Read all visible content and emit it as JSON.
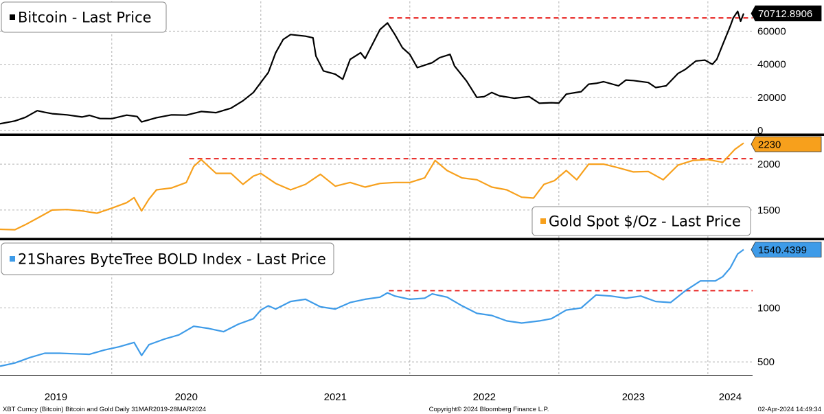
{
  "colors": {
    "bitcoin": "#000000",
    "gold": "#f7a01c",
    "bold": "#3e9be8",
    "resistance": "#e8201e",
    "grid": "#b4b4b4",
    "divider": "#000000"
  },
  "footer": {
    "left": "XBT Curncy (Bitcoin) Bitcoin and Gold  Daily 31MAR2019-28MAR2024",
    "center": "Copyright© 2024 Bloomberg Finance L.P.",
    "right": "02-Apr-2024 14:49:34"
  },
  "chart_data": [
    {
      "type": "line",
      "name": "bitcoin",
      "legend": "Bitcoin - Last Price",
      "legend_placement": "top-left",
      "last_value_label": "70712.8906",
      "last_value": 70712.89,
      "ylim": [
        -2000,
        78000
      ],
      "yticks": [
        0,
        20000,
        40000,
        60000
      ],
      "ytick_labels": [
        "0",
        "20000",
        "40000",
        "60000"
      ],
      "resistance": {
        "y": 68000,
        "x_start": 2021.86,
        "x_end": 2024.3
      },
      "points": [
        [
          2019.25,
          4100
        ],
        [
          2019.35,
          5800
        ],
        [
          2019.42,
          8000
        ],
        [
          2019.5,
          12000
        ],
        [
          2019.55,
          11000
        ],
        [
          2019.6,
          10200
        ],
        [
          2019.7,
          9500
        ],
        [
          2019.8,
          8200
        ],
        [
          2019.85,
          9200
        ],
        [
          2019.92,
          7300
        ],
        [
          2020.0,
          7200
        ],
        [
          2020.1,
          9300
        ],
        [
          2020.17,
          8500
        ],
        [
          2020.2,
          5200
        ],
        [
          2020.3,
          7800
        ],
        [
          2020.4,
          9500
        ],
        [
          2020.5,
          9300
        ],
        [
          2020.6,
          11500
        ],
        [
          2020.7,
          10800
        ],
        [
          2020.8,
          13500
        ],
        [
          2020.88,
          18000
        ],
        [
          2020.95,
          23000
        ],
        [
          2021.0,
          29000
        ],
        [
          2021.05,
          35000
        ],
        [
          2021.1,
          47000
        ],
        [
          2021.15,
          55000
        ],
        [
          2021.2,
          58000
        ],
        [
          2021.3,
          57000
        ],
        [
          2021.35,
          56000
        ],
        [
          2021.37,
          45000
        ],
        [
          2021.42,
          36000
        ],
        [
          2021.5,
          34000
        ],
        [
          2021.55,
          31000
        ],
        [
          2021.6,
          43000
        ],
        [
          2021.67,
          47000
        ],
        [
          2021.7,
          43500
        ],
        [
          2021.8,
          61000
        ],
        [
          2021.85,
          65000
        ],
        [
          2021.9,
          58000
        ],
        [
          2021.95,
          50000
        ],
        [
          2022.0,
          46000
        ],
        [
          2022.05,
          38000
        ],
        [
          2022.15,
          41000
        ],
        [
          2022.2,
          44000
        ],
        [
          2022.27,
          46000
        ],
        [
          2022.3,
          39000
        ],
        [
          2022.38,
          30000
        ],
        [
          2022.45,
          20000
        ],
        [
          2022.5,
          20500
        ],
        [
          2022.55,
          23000
        ],
        [
          2022.6,
          21000
        ],
        [
          2022.7,
          19500
        ],
        [
          2022.8,
          20500
        ],
        [
          2022.87,
          16500
        ],
        [
          2022.95,
          16800
        ],
        [
          2023.0,
          16600
        ],
        [
          2023.05,
          22000
        ],
        [
          2023.15,
          23500
        ],
        [
          2023.2,
          28000
        ],
        [
          2023.25,
          28500
        ],
        [
          2023.3,
          29500
        ],
        [
          2023.4,
          27000
        ],
        [
          2023.45,
          30500
        ],
        [
          2023.5,
          30200
        ],
        [
          2023.6,
          29000
        ],
        [
          2023.65,
          26000
        ],
        [
          2023.72,
          27000
        ],
        [
          2023.8,
          34500
        ],
        [
          2023.85,
          37000
        ],
        [
          2023.92,
          42000
        ],
        [
          2023.98,
          42500
        ],
        [
          2024.03,
          40000
        ],
        [
          2024.06,
          43000
        ],
        [
          2024.1,
          52000
        ],
        [
          2024.15,
          63000
        ],
        [
          2024.17,
          68000
        ],
        [
          2024.2,
          72000
        ],
        [
          2024.22,
          66000
        ],
        [
          2024.24,
          70712.89
        ]
      ]
    },
    {
      "type": "line",
      "name": "gold",
      "legend": "Gold Spot $/Oz - Last Price",
      "legend_placement": "bottom-right",
      "last_value_label": "2230",
      "last_value": 2230,
      "ylim": [
        1200,
        2300
      ],
      "yticks": [
        1500,
        2000
      ],
      "ytick_labels": [
        "1500",
        "2000"
      ],
      "resistance": {
        "y": 2060,
        "x_start": 2020.52,
        "x_end": 2024.3
      },
      "points": [
        [
          2019.25,
          1290
        ],
        [
          2019.35,
          1285
        ],
        [
          2019.42,
          1340
        ],
        [
          2019.5,
          1410
        ],
        [
          2019.6,
          1500
        ],
        [
          2019.7,
          1505
        ],
        [
          2019.8,
          1490
        ],
        [
          2019.9,
          1465
        ],
        [
          2020.0,
          1520
        ],
        [
          2020.1,
          1580
        ],
        [
          2020.15,
          1635
        ],
        [
          2020.2,
          1490
        ],
        [
          2020.25,
          1620
        ],
        [
          2020.3,
          1720
        ],
        [
          2020.4,
          1740
        ],
        [
          2020.5,
          1800
        ],
        [
          2020.55,
          1975
        ],
        [
          2020.6,
          2050
        ],
        [
          2020.7,
          1900
        ],
        [
          2020.8,
          1900
        ],
        [
          2020.88,
          1780
        ],
        [
          2020.95,
          1870
        ],
        [
          2021.0,
          1900
        ],
        [
          2021.1,
          1790
        ],
        [
          2021.2,
          1720
        ],
        [
          2021.3,
          1780
        ],
        [
          2021.4,
          1890
        ],
        [
          2021.5,
          1760
        ],
        [
          2021.6,
          1800
        ],
        [
          2021.7,
          1750
        ],
        [
          2021.8,
          1790
        ],
        [
          2021.9,
          1800
        ],
        [
          2022.0,
          1800
        ],
        [
          2022.1,
          1850
        ],
        [
          2022.17,
          2040
        ],
        [
          2022.25,
          1930
        ],
        [
          2022.35,
          1850
        ],
        [
          2022.45,
          1830
        ],
        [
          2022.55,
          1750
        ],
        [
          2022.65,
          1720
        ],
        [
          2022.75,
          1640
        ],
        [
          2022.83,
          1630
        ],
        [
          2022.9,
          1780
        ],
        [
          2022.97,
          1820
        ],
        [
          2023.05,
          1930
        ],
        [
          2023.12,
          1830
        ],
        [
          2023.2,
          2000
        ],
        [
          2023.3,
          2000
        ],
        [
          2023.4,
          1960
        ],
        [
          2023.5,
          1915
        ],
        [
          2023.6,
          1920
        ],
        [
          2023.7,
          1830
        ],
        [
          2023.8,
          1990
        ],
        [
          2023.9,
          2040
        ],
        [
          2024.0,
          2050
        ],
        [
          2024.1,
          2020
        ],
        [
          2024.18,
          2160
        ],
        [
          2024.24,
          2230
        ]
      ]
    },
    {
      "type": "line",
      "name": "bold",
      "legend": "21Shares ByteTree BOLD Index - Last Price",
      "legend_placement": "top-left",
      "last_value_label": "1540.4399",
      "last_value": 1540.44,
      "ylim": [
        380,
        1620
      ],
      "yticks": [
        500,
        1000
      ],
      "ytick_labels": [
        "500",
        "1000"
      ],
      "resistance": {
        "y": 1160,
        "x_start": 2021.86,
        "x_end": 2024.3
      },
      "points": [
        [
          2019.25,
          460
        ],
        [
          2019.35,
          490
        ],
        [
          2019.45,
          540
        ],
        [
          2019.55,
          580
        ],
        [
          2019.65,
          580
        ],
        [
          2019.75,
          575
        ],
        [
          2019.85,
          570
        ],
        [
          2019.95,
          610
        ],
        [
          2020.05,
          640
        ],
        [
          2020.15,
          680
        ],
        [
          2020.2,
          560
        ],
        [
          2020.25,
          660
        ],
        [
          2020.35,
          710
        ],
        [
          2020.45,
          750
        ],
        [
          2020.55,
          830
        ],
        [
          2020.65,
          810
        ],
        [
          2020.75,
          780
        ],
        [
          2020.85,
          850
        ],
        [
          2020.95,
          900
        ],
        [
          2021.0,
          980
        ],
        [
          2021.05,
          1020
        ],
        [
          2021.1,
          990
        ],
        [
          2021.2,
          1060
        ],
        [
          2021.3,
          1080
        ],
        [
          2021.4,
          1010
        ],
        [
          2021.5,
          990
        ],
        [
          2021.6,
          1050
        ],
        [
          2021.7,
          1080
        ],
        [
          2021.8,
          1100
        ],
        [
          2021.85,
          1140
        ],
        [
          2021.9,
          1110
        ],
        [
          2022.0,
          1080
        ],
        [
          2022.1,
          1090
        ],
        [
          2022.15,
          1130
        ],
        [
          2022.25,
          1100
        ],
        [
          2022.35,
          1020
        ],
        [
          2022.45,
          950
        ],
        [
          2022.55,
          930
        ],
        [
          2022.65,
          880
        ],
        [
          2022.75,
          860
        ],
        [
          2022.87,
          880
        ],
        [
          2022.95,
          900
        ],
        [
          2023.05,
          980
        ],
        [
          2023.15,
          1000
        ],
        [
          2023.25,
          1120
        ],
        [
          2023.35,
          1110
        ],
        [
          2023.45,
          1090
        ],
        [
          2023.55,
          1110
        ],
        [
          2023.65,
          1060
        ],
        [
          2023.75,
          1050
        ],
        [
          2023.85,
          1160
        ],
        [
          2023.95,
          1250
        ],
        [
          2024.05,
          1250
        ],
        [
          2024.1,
          1290
        ],
        [
          2024.15,
          1370
        ],
        [
          2024.2,
          1500
        ],
        [
          2024.24,
          1540.44
        ]
      ]
    }
  ],
  "x_axis": {
    "type": "date",
    "range": [
      2019.25,
      2024.3
    ],
    "years": [
      2019,
      2020,
      2021,
      2022,
      2023,
      2024
    ],
    "labels": [
      "2019",
      "2020",
      "2021",
      "2022",
      "2023",
      "2024"
    ]
  }
}
